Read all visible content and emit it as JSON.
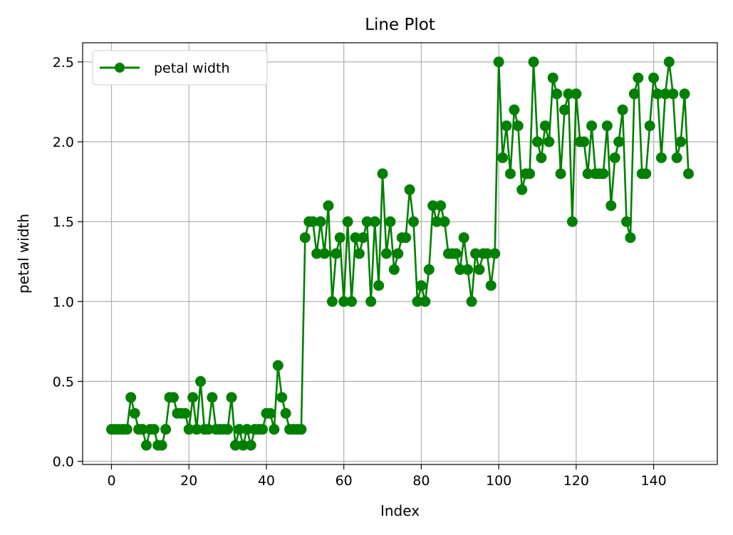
{
  "chart_data": {
    "type": "line",
    "title": "Line Plot",
    "xlabel": "Index",
    "ylabel": "petal width",
    "xlim": [
      -7.45,
      156.45
    ],
    "ylim": [
      -0.02,
      2.62
    ],
    "xticks": [
      0,
      20,
      40,
      60,
      80,
      100,
      120,
      140
    ],
    "xtick_labels": [
      "0",
      "20",
      "40",
      "60",
      "80",
      "100",
      "120",
      "140"
    ],
    "yticks": [
      0.0,
      0.5,
      1.0,
      1.5,
      2.0,
      2.5
    ],
    "ytick_labels": [
      "0.0",
      "0.5",
      "1.0",
      "1.5",
      "2.0",
      "2.5"
    ],
    "grid": true,
    "legend_position": "top-left",
    "colors": {
      "series": "#008000",
      "grid": "#b0b0b0",
      "axes": "#000000"
    },
    "series": [
      {
        "name": "petal width",
        "marker": "circle",
        "x_start": 0,
        "values": [
          0.2,
          0.2,
          0.2,
          0.2,
          0.2,
          0.4,
          0.3,
          0.2,
          0.2,
          0.1,
          0.2,
          0.2,
          0.1,
          0.1,
          0.2,
          0.4,
          0.4,
          0.3,
          0.3,
          0.3,
          0.2,
          0.4,
          0.2,
          0.5,
          0.2,
          0.2,
          0.4,
          0.2,
          0.2,
          0.2,
          0.2,
          0.4,
          0.1,
          0.2,
          0.1,
          0.2,
          0.1,
          0.2,
          0.2,
          0.2,
          0.3,
          0.3,
          0.2,
          0.6,
          0.4,
          0.3,
          0.2,
          0.2,
          0.2,
          0.2,
          1.4,
          1.5,
          1.5,
          1.3,
          1.5,
          1.3,
          1.6,
          1.0,
          1.3,
          1.4,
          1.0,
          1.5,
          1.0,
          1.4,
          1.3,
          1.4,
          1.5,
          1.0,
          1.5,
          1.1,
          1.8,
          1.3,
          1.5,
          1.2,
          1.3,
          1.4,
          1.4,
          1.7,
          1.5,
          1.0,
          1.1,
          1.0,
          1.2,
          1.6,
          1.5,
          1.6,
          1.5,
          1.3,
          1.3,
          1.3,
          1.2,
          1.4,
          1.2,
          1.0,
          1.3,
          1.2,
          1.3,
          1.3,
          1.1,
          1.3,
          2.5,
          1.9,
          2.1,
          1.8,
          2.2,
          2.1,
          1.7,
          1.8,
          1.8,
          2.5,
          2.0,
          1.9,
          2.1,
          2.0,
          2.4,
          2.3,
          1.8,
          2.2,
          2.3,
          1.5,
          2.3,
          2.0,
          2.0,
          1.8,
          2.1,
          1.8,
          1.8,
          1.8,
          2.1,
          1.6,
          1.9,
          2.0,
          2.2,
          1.5,
          1.4,
          2.3,
          2.4,
          1.8,
          1.8,
          2.1,
          2.4,
          2.3,
          1.9,
          2.3,
          2.5,
          2.3,
          1.9,
          2.0,
          2.3,
          1.8
        ]
      }
    ]
  }
}
